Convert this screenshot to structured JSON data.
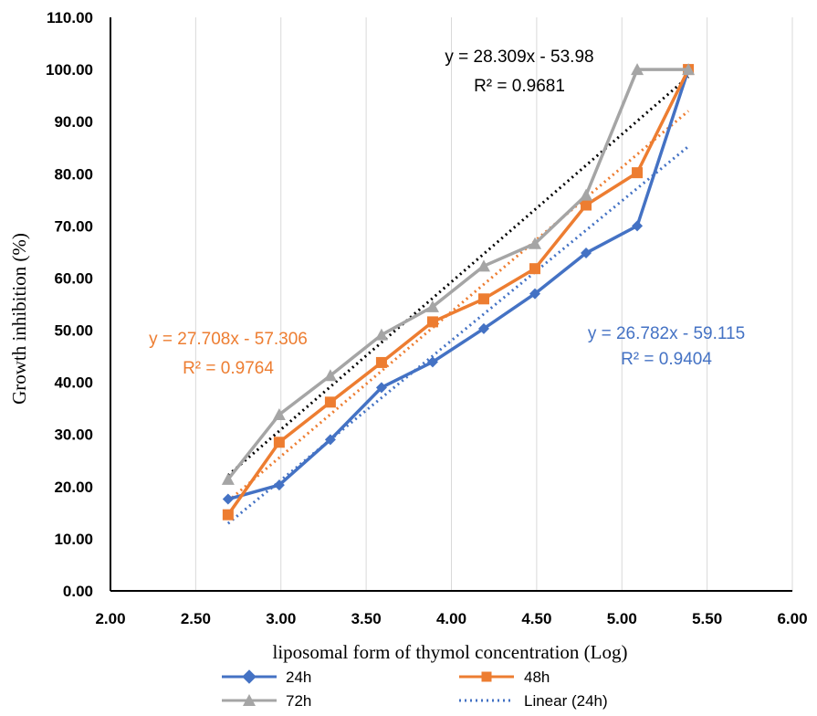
{
  "chart_data": {
    "type": "line",
    "xlabel": "liposomal form of thymol concentration (Log)",
    "ylabel": "Growth inhibition (%)",
    "xlim": [
      2.0,
      6.0
    ],
    "ylim": [
      0.0,
      110.0
    ],
    "x_ticks": [
      "2.00",
      "2.50",
      "3.00",
      "3.50",
      "4.00",
      "4.50",
      "5.00",
      "5.50",
      "6.00"
    ],
    "y_ticks": [
      "0.00",
      "10.00",
      "20.00",
      "30.00",
      "40.00",
      "50.00",
      "60.00",
      "70.00",
      "80.00",
      "90.00",
      "100.00",
      "110.00"
    ],
    "grid": "vertical",
    "legend_position": "bottom",
    "x": [
      2.69,
      2.99,
      3.29,
      3.59,
      3.89,
      4.19,
      4.49,
      4.79,
      5.09,
      5.39
    ],
    "series": [
      {
        "name": "24h",
        "color": "#4472C4",
        "marker": "diamond",
        "values": [
          17.6,
          20.3,
          29.0,
          39.0,
          43.9,
          50.3,
          57.0,
          64.8,
          70.0,
          100.0
        ]
      },
      {
        "name": "48h",
        "color": "#ED7D31",
        "marker": "square",
        "values": [
          14.6,
          28.5,
          36.2,
          43.8,
          51.6,
          56.0,
          61.8,
          74.0,
          80.2,
          100.0
        ]
      },
      {
        "name": "72h",
        "color": "#A5A5A5",
        "marker": "triangle",
        "values": [
          21.4,
          33.8,
          41.3,
          49.1,
          54.5,
          62.3,
          66.6,
          75.9,
          100.0,
          100.0
        ]
      }
    ],
    "trendlines": [
      {
        "name": "Linear (24h)",
        "color": "#4472C4",
        "slope": 26.782,
        "intercept": -59.115,
        "legend": true
      },
      {
        "color": "#ED7D31",
        "slope": 27.708,
        "intercept": -57.306,
        "legend": false
      },
      {
        "color": "#000000",
        "slope": 28.309,
        "intercept": -53.98,
        "legend": false
      }
    ],
    "annotations": [
      {
        "equation": "y = 28.309x - 53.98",
        "r2": "R² = 0.9681",
        "color": "#000000"
      },
      {
        "equation": "y = 27.708x - 57.306",
        "r2": "R² = 0.9764",
        "color": "#ED7D31"
      },
      {
        "equation": "y = 26.782x - 59.115",
        "r2": "R² = 0.9404",
        "color": "#4472C4"
      }
    ]
  }
}
